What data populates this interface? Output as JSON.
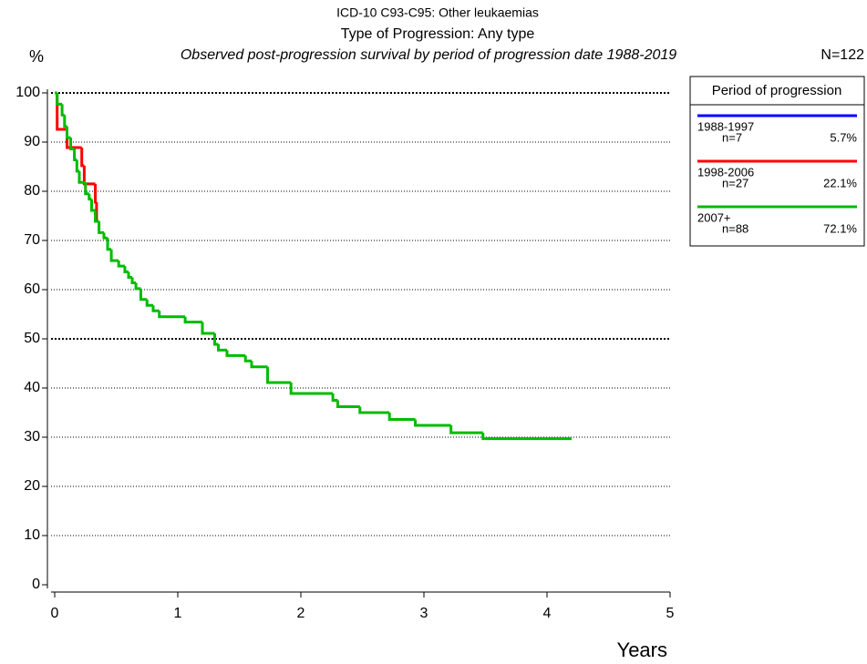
{
  "chart_data": {
    "type": "step",
    "title": "ICD-10 C93-C95: Other leukaemias",
    "subtitle": "Type of Progression: Any type",
    "description": "Observed post-progression survival by period of progression date 1988-2019",
    "total": "N=122",
    "y_label": "%",
    "x_label": "Years",
    "legend_title": "Period of progression",
    "xlim": [
      0,
      5
    ],
    "xticks": [
      0,
      1,
      2,
      3,
      4,
      5
    ],
    "ylim": [
      0,
      100
    ],
    "yticks": [
      0,
      10,
      20,
      30,
      40,
      50,
      60,
      70,
      80,
      90,
      100
    ],
    "grid": true,
    "series": [
      {
        "name": "1988-1997",
        "count": "n=7",
        "share": "5.7%",
        "color": "#0000ff",
        "x": [],
        "values": []
      },
      {
        "name": "1998-2006",
        "count": "n=27",
        "share": "22.1%",
        "color": "#ff0000",
        "x": [
          0,
          0.02,
          0.1,
          0.22,
          0.24,
          0.33,
          0.34,
          0.35
        ],
        "values": [
          100,
          92.6,
          88.9,
          85.2,
          81.5,
          77.8,
          74.1,
          74.1
        ]
      },
      {
        "name": "2007+",
        "count": "n=88",
        "share": "72.1%",
        "color": "#00bb00",
        "x": [
          0,
          0.02,
          0.06,
          0.08,
          0.1,
          0.13,
          0.16,
          0.18,
          0.2,
          0.25,
          0.28,
          0.3,
          0.33,
          0.36,
          0.4,
          0.43,
          0.46,
          0.52,
          0.57,
          0.6,
          0.63,
          0.66,
          0.7,
          0.75,
          0.8,
          0.85,
          1.06,
          1.2,
          1.3,
          1.33,
          1.4,
          1.55,
          1.6,
          1.73,
          1.92,
          2.26,
          2.3,
          2.48,
          2.72,
          2.93,
          3.22,
          3.48,
          4.2
        ],
        "values": [
          100,
          97.7,
          95.5,
          93.2,
          90.9,
          88.6,
          86.4,
          84.1,
          81.8,
          79.5,
          78.4,
          76.1,
          73.9,
          71.6,
          70.5,
          68.2,
          65.9,
          64.8,
          63.6,
          62.5,
          61.4,
          60.2,
          58.0,
          56.8,
          55.7,
          54.5,
          53.4,
          51.1,
          48.9,
          47.7,
          46.6,
          45.5,
          44.3,
          41.1,
          38.9,
          37.5,
          36.2,
          35.0,
          33.6,
          32.4,
          30.9,
          29.7,
          29.7
        ]
      }
    ]
  }
}
